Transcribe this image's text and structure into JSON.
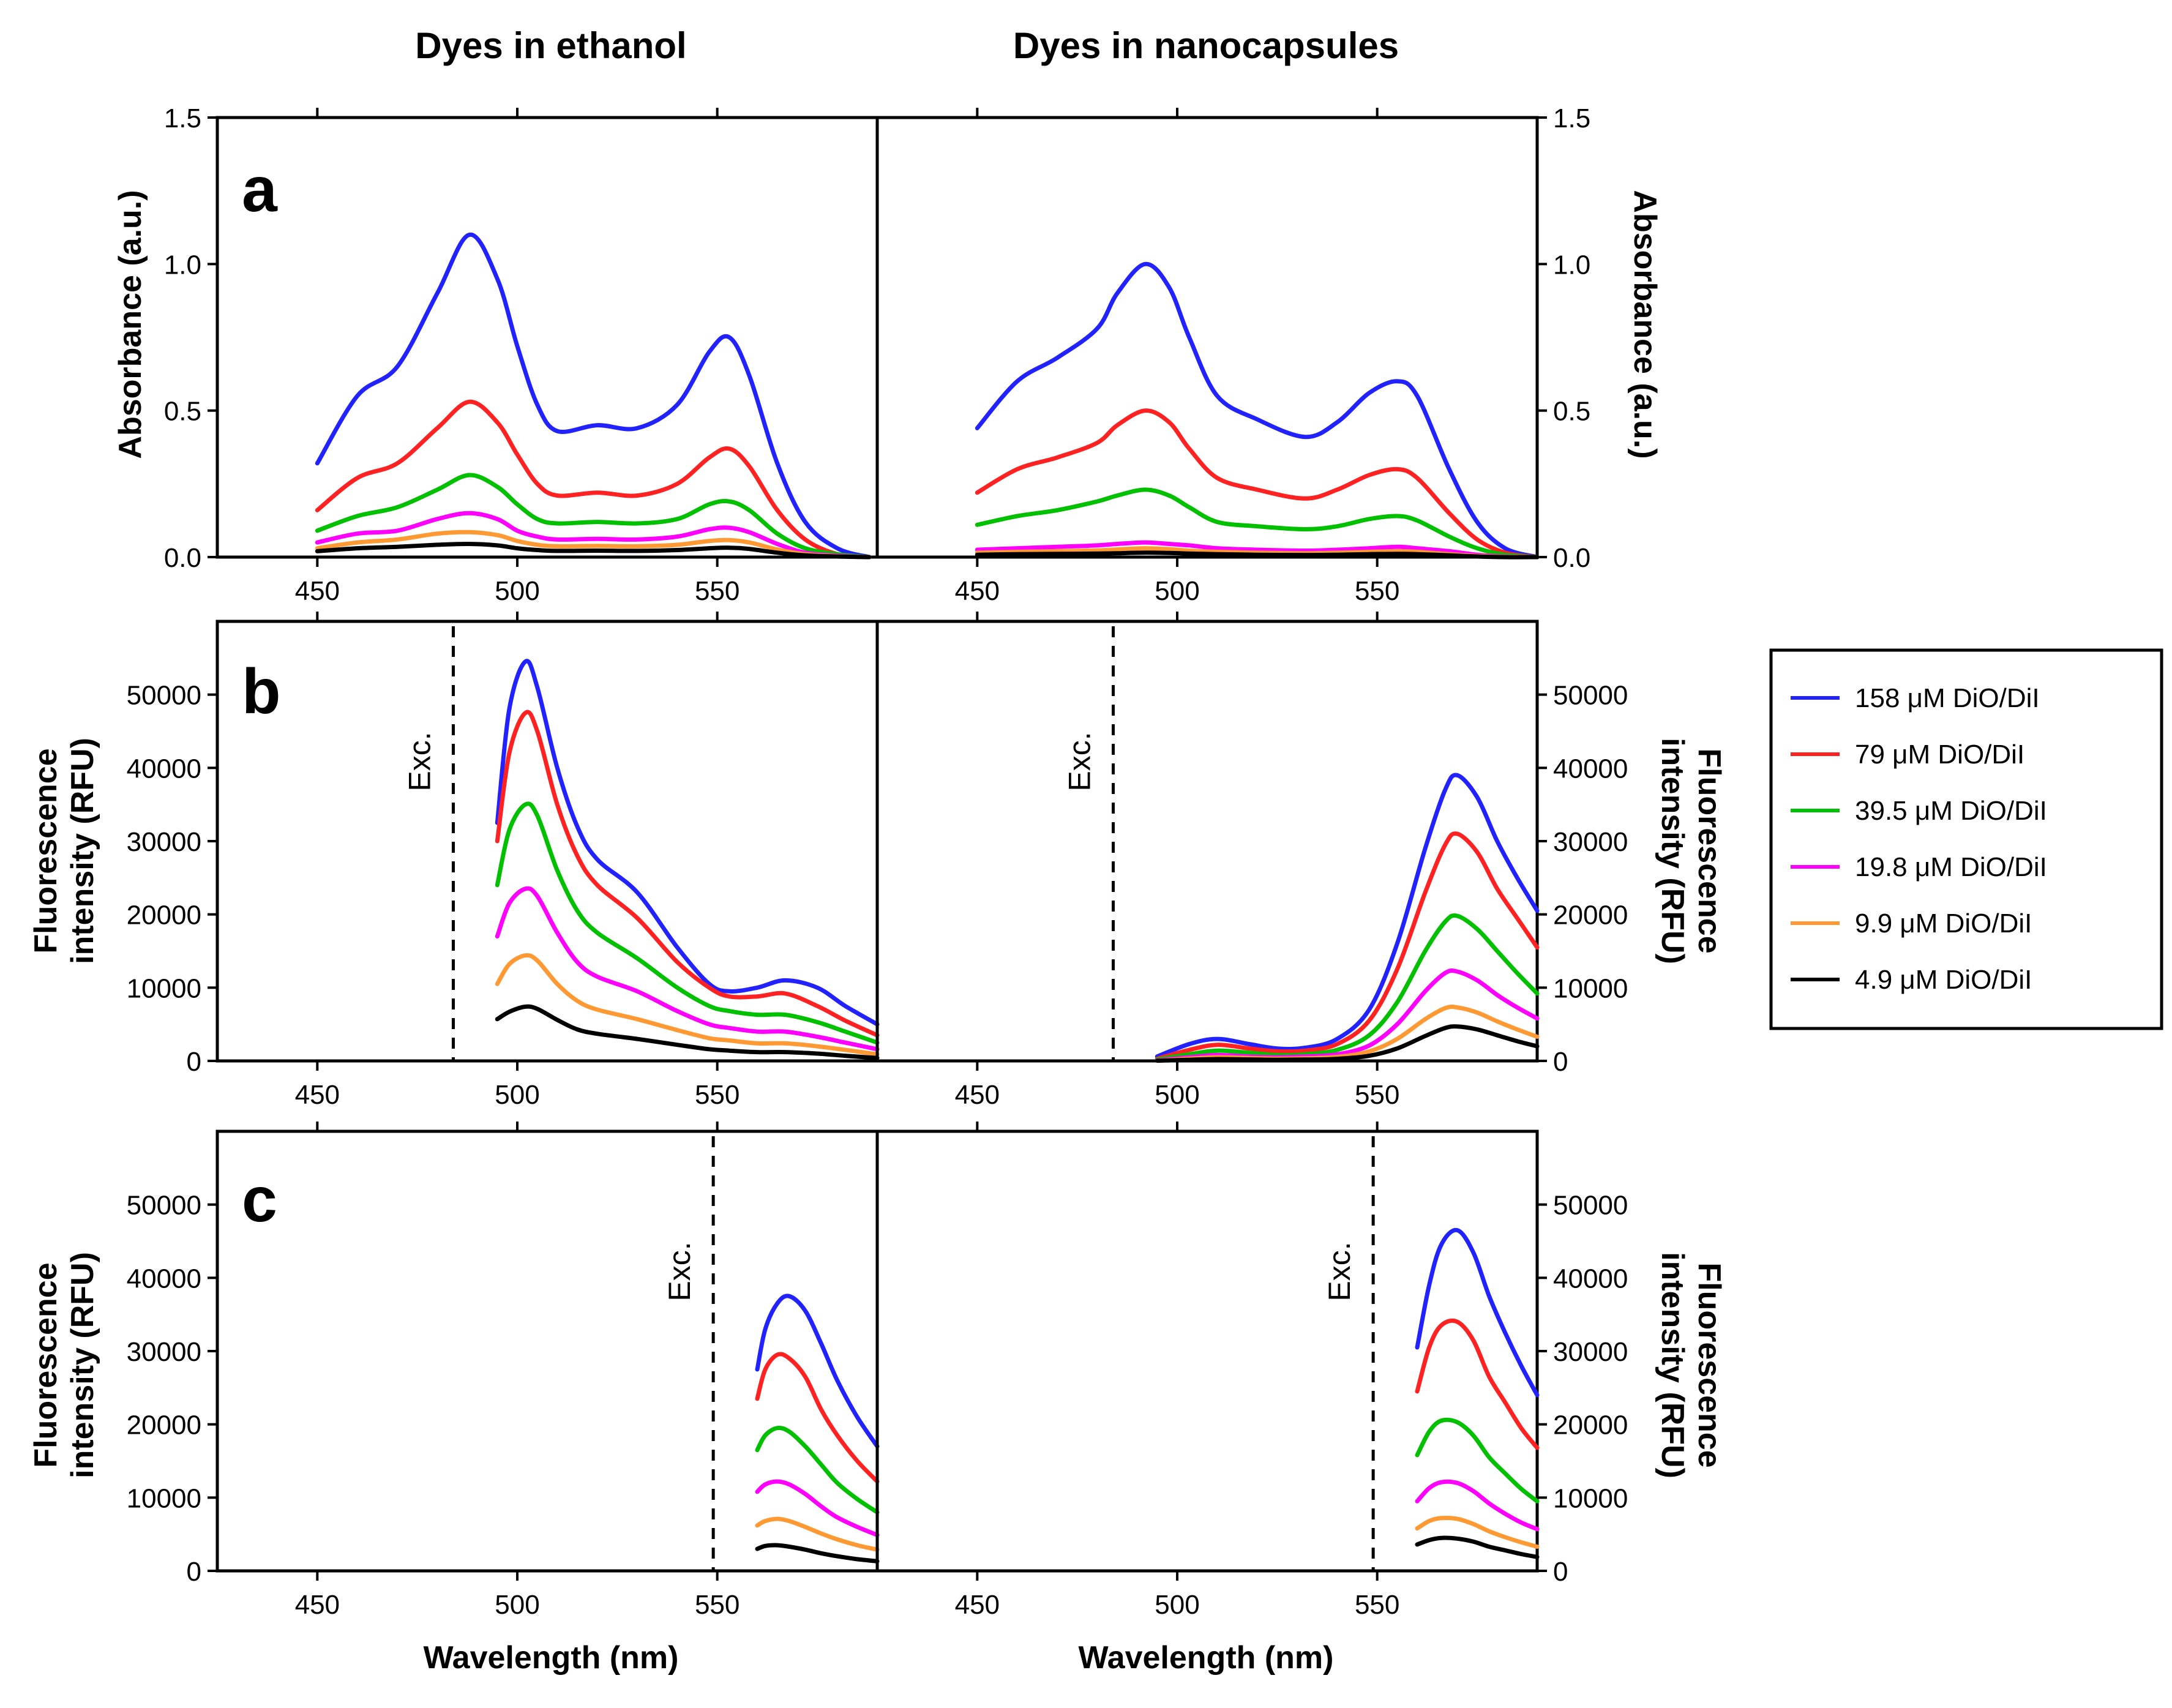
{
  "figure": {
    "columns": [
      "Dyes in ethanol",
      "Dyes in nanocapsules"
    ],
    "xlabel": "Wavelength (nm)",
    "xticks": [
      450,
      500,
      550
    ],
    "xlim": [
      425,
      590
    ]
  },
  "colors": {
    "158": "#2222ff",
    "79": "#ff2222",
    "39.5": "#00c000",
    "19.8": "#ff00ff",
    "9.9": "#ff9933",
    "4.9": "#000000"
  },
  "legend": [
    {
      "key": "158",
      "label": "158 μM DiO/DiI"
    },
    {
      "key": "79",
      "label": "79 μM DiO/DiI"
    },
    {
      "key": "39.5",
      "label": "39.5 μM DiO/DiI"
    },
    {
      "key": "19.8",
      "label": "19.8 μM DiO/DiI"
    },
    {
      "key": "9.9",
      "label": "9.9 μM DiO/DiI"
    },
    {
      "key": "4.9",
      "label": "4.9 μM DiO/DiI"
    }
  ],
  "chart_data": [
    {
      "type": "line",
      "panel": "a",
      "column": "Dyes in ethanol",
      "ylabel": "Absorbance (a.u.)",
      "ylim": [
        0,
        1.5
      ],
      "yticks": [
        "0.0",
        "0.5",
        "1.0",
        "1.5"
      ],
      "x": [
        450,
        460,
        470,
        480,
        488,
        495,
        500,
        505,
        510,
        520,
        530,
        540,
        548,
        553,
        558,
        565,
        572,
        580,
        588
      ],
      "series": [
        {
          "name": "158 μM DiO/DiI",
          "key": "158",
          "values": [
            0.32,
            0.55,
            0.65,
            0.9,
            1.1,
            0.95,
            0.72,
            0.52,
            0.43,
            0.45,
            0.44,
            0.52,
            0.7,
            0.75,
            0.62,
            0.32,
            0.12,
            0.03,
            0.0
          ]
        },
        {
          "name": "79 μM DiO/DiI",
          "key": "79",
          "values": [
            0.16,
            0.27,
            0.32,
            0.44,
            0.53,
            0.46,
            0.35,
            0.25,
            0.21,
            0.22,
            0.21,
            0.25,
            0.34,
            0.37,
            0.31,
            0.16,
            0.06,
            0.01,
            0.0
          ]
        },
        {
          "name": "39.5 μM DiO/DiI",
          "key": "39.5",
          "values": [
            0.09,
            0.14,
            0.17,
            0.23,
            0.28,
            0.24,
            0.18,
            0.13,
            0.115,
            0.12,
            0.115,
            0.13,
            0.18,
            0.19,
            0.16,
            0.08,
            0.03,
            0.01,
            0.0
          ]
        },
        {
          "name": "19.8 μM DiO/DiI",
          "key": "19.8",
          "values": [
            0.05,
            0.08,
            0.09,
            0.13,
            0.15,
            0.13,
            0.09,
            0.07,
            0.06,
            0.062,
            0.06,
            0.07,
            0.095,
            0.1,
            0.085,
            0.045,
            0.015,
            0.005,
            0.0
          ]
        },
        {
          "name": "9.9 μM DiO/DiI",
          "key": "9.9",
          "values": [
            0.03,
            0.05,
            0.06,
            0.08,
            0.085,
            0.075,
            0.055,
            0.042,
            0.037,
            0.038,
            0.037,
            0.042,
            0.055,
            0.058,
            0.05,
            0.026,
            0.01,
            0.003,
            0.0
          ]
        },
        {
          "name": "4.9 μM DiO/DiI",
          "key": "4.9",
          "values": [
            0.02,
            0.03,
            0.035,
            0.042,
            0.045,
            0.04,
            0.03,
            0.024,
            0.021,
            0.022,
            0.021,
            0.024,
            0.03,
            0.032,
            0.028,
            0.015,
            0.006,
            0.002,
            0.0
          ]
        }
      ]
    },
    {
      "type": "line",
      "panel": "a",
      "column": "Dyes in nanocapsules",
      "ylabel": "Absorbance (a.u.)",
      "ylim": [
        0,
        1.5
      ],
      "yticks": [
        "0.0",
        "0.5",
        "1.0",
        "1.5"
      ],
      "x": [
        450,
        460,
        470,
        480,
        485,
        492,
        498,
        503,
        510,
        520,
        532,
        540,
        548,
        555,
        560,
        568,
        575,
        582,
        590
      ],
      "series": [
        {
          "name": "158 μM DiO/DiI",
          "key": "158",
          "values": [
            0.44,
            0.6,
            0.68,
            0.78,
            0.9,
            1.0,
            0.92,
            0.75,
            0.55,
            0.47,
            0.41,
            0.46,
            0.56,
            0.6,
            0.55,
            0.3,
            0.12,
            0.03,
            0.0
          ]
        },
        {
          "name": "79 μM DiO/DiI",
          "key": "79",
          "values": [
            0.22,
            0.3,
            0.34,
            0.39,
            0.45,
            0.5,
            0.46,
            0.37,
            0.27,
            0.23,
            0.2,
            0.23,
            0.28,
            0.3,
            0.27,
            0.15,
            0.06,
            0.015,
            0.0
          ]
        },
        {
          "name": "39.5 μM DiO/DiI",
          "key": "39.5",
          "values": [
            0.11,
            0.14,
            0.16,
            0.19,
            0.21,
            0.23,
            0.21,
            0.17,
            0.12,
            0.105,
            0.095,
            0.105,
            0.13,
            0.14,
            0.125,
            0.07,
            0.03,
            0.008,
            0.0
          ]
        },
        {
          "name": "19.8 μM DiO/DiI",
          "key": "19.8",
          "values": [
            0.025,
            0.03,
            0.035,
            0.04,
            0.045,
            0.05,
            0.045,
            0.04,
            0.03,
            0.025,
            0.022,
            0.025,
            0.03,
            0.035,
            0.03,
            0.02,
            0.008,
            0.002,
            0.0
          ]
        },
        {
          "name": "9.9 μM DiO/DiI",
          "key": "9.9",
          "values": [
            0.015,
            0.018,
            0.02,
            0.023,
            0.026,
            0.03,
            0.027,
            0.022,
            0.018,
            0.015,
            0.013,
            0.015,
            0.018,
            0.02,
            0.018,
            0.01,
            0.004,
            0.001,
            0.0
          ]
        },
        {
          "name": "4.9 μM DiO/DiI",
          "key": "4.9",
          "values": [
            0.008,
            0.01,
            0.011,
            0.012,
            0.013,
            0.015,
            0.014,
            0.012,
            0.01,
            0.008,
            0.007,
            0.008,
            0.01,
            0.011,
            0.01,
            0.006,
            0.002,
            0.0,
            0.0
          ]
        }
      ]
    },
    {
      "type": "line",
      "panel": "b",
      "column": "Dyes in ethanol",
      "ylabel": "Fluorescence intensity (RFU)",
      "ylim": [
        0,
        60000
      ],
      "yticks": [
        "0",
        "10000",
        "20000",
        "30000",
        "40000",
        "50000"
      ],
      "excitation": 484,
      "excitation_label": "Exc.",
      "x": [
        495,
        498,
        502,
        505,
        510,
        515,
        520,
        530,
        540,
        548,
        553,
        560,
        567,
        575,
        582,
        590
      ],
      "series": [
        {
          "name": "158 μM DiO/DiI",
          "key": "158",
          "values": [
            32500,
            48000,
            54500,
            51000,
            40000,
            32000,
            27500,
            23000,
            15500,
            10500,
            9500,
            10000,
            11000,
            10000,
            7500,
            5000
          ]
        },
        {
          "name": "79 μM DiO/DiI",
          "key": "79",
          "values": [
            30000,
            42000,
            47500,
            45000,
            35000,
            28000,
            24000,
            19500,
            13500,
            10000,
            8800,
            8800,
            9200,
            7500,
            5500,
            3500
          ]
        },
        {
          "name": "39.5 μM DiO/DiI",
          "key": "39.5",
          "values": [
            24000,
            31500,
            35000,
            33500,
            26000,
            20500,
            17500,
            14000,
            10000,
            7500,
            6800,
            6300,
            6300,
            5300,
            4000,
            2500
          ]
        },
        {
          "name": "19.8 μM DiO/DiI",
          "key": "19.8",
          "values": [
            17000,
            21500,
            23500,
            22500,
            17500,
            13500,
            11500,
            9500,
            6800,
            5000,
            4500,
            4000,
            4000,
            3300,
            2500,
            1600
          ]
        },
        {
          "name": "9.9 μM DiO/DiI",
          "key": "9.9",
          "values": [
            10500,
            13200,
            14400,
            13700,
            10500,
            8200,
            7000,
            5700,
            4200,
            3100,
            2800,
            2400,
            2400,
            2000,
            1500,
            900
          ]
        },
        {
          "name": "4.9 μM DiO/DiI",
          "key": "4.9",
          "values": [
            5700,
            6700,
            7400,
            7100,
            5600,
            4300,
            3700,
            3000,
            2200,
            1600,
            1400,
            1200,
            1200,
            1000,
            700,
            400
          ]
        }
      ]
    },
    {
      "type": "line",
      "panel": "b",
      "column": "Dyes in nanocapsules",
      "ylabel": "Fluorescence intensity (RFU)",
      "ylim": [
        0,
        60000
      ],
      "yticks": [
        "0",
        "10000",
        "20000",
        "30000",
        "40000",
        "50000"
      ],
      "excitation": 484,
      "excitation_label": "Exc.",
      "x": [
        495,
        503,
        510,
        518,
        525,
        532,
        540,
        548,
        555,
        562,
        567,
        570,
        575,
        580,
        585,
        590
      ],
      "series": [
        {
          "name": "158 μM DiO/DiI",
          "key": "158",
          "values": [
            600,
            2300,
            3000,
            2300,
            1700,
            1800,
            3000,
            7000,
            16000,
            29000,
            37000,
            39000,
            36000,
            30000,
            25000,
            20500
          ]
        },
        {
          "name": "79 μM DiO/DiI",
          "key": "79",
          "values": [
            300,
            1500,
            2200,
            1700,
            1300,
            1400,
            2300,
            5500,
            12500,
            23000,
            29500,
            31000,
            28500,
            23500,
            19500,
            15500
          ]
        },
        {
          "name": "39.5 μM DiO/DiI",
          "key": "39.5",
          "values": [
            200,
            900,
            1400,
            1100,
            800,
            900,
            1500,
            3500,
            8000,
            15000,
            19000,
            19800,
            18000,
            15000,
            12000,
            9200
          ]
        },
        {
          "name": "19.8 μM DiO/DiI",
          "key": "19.8",
          "values": [
            100,
            500,
            800,
            600,
            500,
            600,
            900,
            2100,
            5000,
            9500,
            12000,
            12200,
            11000,
            9000,
            7300,
            5800
          ]
        },
        {
          "name": "9.9 μM DiO/DiI",
          "key": "9.9",
          "values": [
            50,
            300,
            500,
            400,
            300,
            350,
            550,
            1300,
            3000,
            5700,
            7200,
            7300,
            6600,
            5400,
            4300,
            3300
          ]
        },
        {
          "name": "4.9 μM DiO/DiI",
          "key": "4.9",
          "values": [
            30,
            150,
            250,
            200,
            150,
            180,
            280,
            700,
            1700,
            3400,
            4500,
            4700,
            4300,
            3500,
            2700,
            2000
          ]
        }
      ]
    },
    {
      "type": "line",
      "panel": "c",
      "column": "Dyes in ethanol",
      "ylabel": "Fluorescence intensity (RFU)",
      "ylim": [
        0,
        60000
      ],
      "yticks": [
        "0",
        "10000",
        "20000",
        "30000",
        "40000",
        "50000"
      ],
      "excitation": 549,
      "excitation_label": "Exc.",
      "x": [
        560,
        562,
        565,
        568,
        572,
        576,
        580,
        585,
        590
      ],
      "series": [
        {
          "name": "158 μM DiO/DiI",
          "key": "158",
          "values": [
            27500,
            33000,
            36500,
            37500,
            35500,
            31000,
            26000,
            21000,
            17000
          ]
        },
        {
          "name": "79 μM DiO/DiI",
          "key": "79",
          "values": [
            23500,
            27500,
            29500,
            29000,
            26500,
            22000,
            18500,
            15000,
            12200
          ]
        },
        {
          "name": "39.5 μM DiO/DiI",
          "key": "39.5",
          "values": [
            16500,
            18500,
            19500,
            19000,
            17000,
            14500,
            12000,
            9800,
            8000
          ]
        },
        {
          "name": "19.8 μM DiO/DiI",
          "key": "19.8",
          "values": [
            10800,
            11800,
            12200,
            11800,
            10500,
            8800,
            7300,
            6000,
            4900
          ]
        },
        {
          "name": "9.9 μM DiO/DiI",
          "key": "9.9",
          "values": [
            6200,
            6800,
            7100,
            6800,
            6000,
            5100,
            4300,
            3500,
            2900
          ]
        },
        {
          "name": "4.9 μM DiO/DiI",
          "key": "4.9",
          "values": [
            3000,
            3400,
            3500,
            3300,
            2900,
            2400,
            2000,
            1600,
            1300
          ]
        }
      ]
    },
    {
      "type": "line",
      "panel": "c",
      "column": "Dyes in nanocapsules",
      "ylabel": "Fluorescence intensity (RFU)",
      "ylim": [
        0,
        60000
      ],
      "yticks": [
        "0",
        "10000",
        "20000",
        "30000",
        "40000",
        "50000"
      ],
      "excitation": 549,
      "excitation_label": "Exc.",
      "x": [
        560,
        563,
        566,
        570,
        574,
        578,
        582,
        586,
        590
      ],
      "series": [
        {
          "name": "158 μM DiO/DiI",
          "key": "158",
          "values": [
            30500,
            39000,
            44500,
            46500,
            43500,
            37500,
            32500,
            28000,
            24000
          ]
        },
        {
          "name": "79 μM DiO/DiI",
          "key": "79",
          "values": [
            24500,
            30500,
            33500,
            34000,
            31500,
            26500,
            23000,
            19500,
            16800
          ]
        },
        {
          "name": "39.5 μM DiO/DiI",
          "key": "39.5",
          "values": [
            15800,
            19000,
            20500,
            20300,
            18500,
            15500,
            13300,
            11200,
            9500
          ]
        },
        {
          "name": "19.8 μM DiO/DiI",
          "key": "19.8",
          "values": [
            9500,
            11300,
            12100,
            12000,
            10900,
            9200,
            7800,
            6600,
            5700
          ]
        },
        {
          "name": "9.9 μM DiO/DiI",
          "key": "9.9",
          "values": [
            5800,
            6800,
            7200,
            7100,
            6400,
            5400,
            4600,
            3900,
            3300
          ]
        },
        {
          "name": "4.9 μM DiO/DiI",
          "key": "4.9",
          "values": [
            3600,
            4200,
            4500,
            4400,
            4000,
            3300,
            2800,
            2300,
            1900
          ]
        }
      ]
    }
  ]
}
